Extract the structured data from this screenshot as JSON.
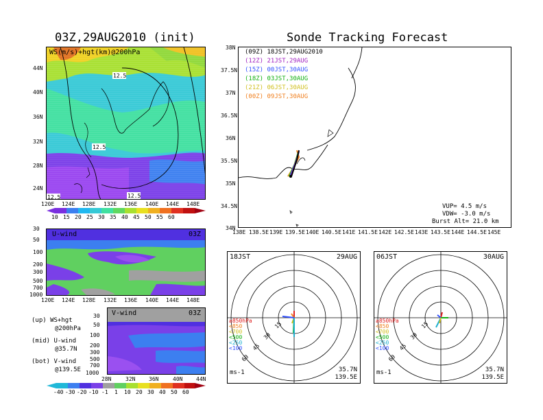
{
  "left": {
    "title": "03Z,29AUG2010 (init)",
    "map_label": "WS(m/s)+hgt(km)@200hPa",
    "contour_labels": [
      "12.5",
      "12.5",
      "12.5",
      "12.5"
    ],
    "lat_ticks": [
      "44N",
      "40N",
      "36N",
      "32N",
      "28N",
      "24N"
    ],
    "lon_ticks": [
      "120E",
      "124E",
      "128E",
      "132E",
      "136E",
      "140E",
      "144E",
      "148E"
    ],
    "colorbar_ws": [
      "10",
      "15",
      "20",
      "25",
      "30",
      "35",
      "40",
      "45",
      "50",
      "55",
      "60"
    ],
    "u_label": "U-wind",
    "u_time": "03Z",
    "v_label": "V-wind",
    "v_time": "03Z",
    "pres_ticks": [
      "30",
      "50",
      "100",
      "200",
      "300",
      "500",
      "700",
      "1000"
    ],
    "v_lat_ticks": [
      "28N",
      "32N",
      "36N",
      "40N",
      "44N"
    ],
    "colorbar_uv": [
      "-40",
      "-30",
      "-20",
      "-10",
      "-1",
      "1",
      "10",
      "20",
      "30",
      "40",
      "50",
      "60"
    ],
    "legend": [
      {
        "a": "(up) WS+hgt",
        "b": "@200hPa"
      },
      {
        "a": "(mid) U-wind",
        "b": "@35.7N"
      },
      {
        "a": "(bot) V-wind",
        "b": "@139.5E"
      }
    ]
  },
  "right": {
    "title": "Sonde Tracking Forecast",
    "tracks": [
      {
        "code": "(09Z)",
        "text": "18JST,29AUG2010",
        "color": "#000000"
      },
      {
        "code": "(12Z)",
        "text": "21JST,29AUG",
        "color": "#a020c0"
      },
      {
        "code": "(15Z)",
        "text": "00JST,30AUG",
        "color": "#3050ff"
      },
      {
        "code": "(18Z)",
        "text": "03JST,30AUG",
        "color": "#10b010"
      },
      {
        "code": "(21Z)",
        "text": "06JST,30AUG",
        "color": "#d0c020"
      },
      {
        "code": "(00Z)",
        "text": "09JST,30AUG",
        "color": "#f08020"
      }
    ],
    "lat_ticks": [
      "38N",
      "37.5N",
      "37N",
      "36.5N",
      "36N",
      "35.5N",
      "35N",
      "34.5N",
      "34N"
    ],
    "lon_ticks": [
      "138E",
      "138.5E",
      "139E",
      "139.5E",
      "140E",
      "140.5E",
      "141E",
      "141.5E",
      "142E",
      "142.5E",
      "143E",
      "143.5E",
      "144E",
      "144.5E",
      "145E"
    ],
    "params": [
      "VUP= 4.5 m/s",
      "VDW= -3.0 m/s",
      "Burst Alt= 21.0 km"
    ]
  },
  "polar": [
    {
      "left": "18JST",
      "right": "29AUG",
      "pos": "35.7N",
      "pos2": "139.5E",
      "unit": "ms-1"
    },
    {
      "left": "06JST",
      "right": "30AUG",
      "pos": "35.7N",
      "pos2": "139.5E",
      "unit": "ms-1"
    }
  ],
  "polar_rings": [
    "15",
    "30",
    "45",
    "60"
  ],
  "polar_levels": [
    {
      "t": "≥850hPa",
      "c": "#e02020"
    },
    {
      "t": "<850",
      "c": "#f08020"
    },
    {
      "t": "<700",
      "c": "#d0c020"
    },
    {
      "t": "<500",
      "c": "#10b010"
    },
    {
      "t": "<250",
      "c": "#20b0d0"
    },
    {
      "t": "<100",
      "c": "#3050ff"
    }
  ]
}
